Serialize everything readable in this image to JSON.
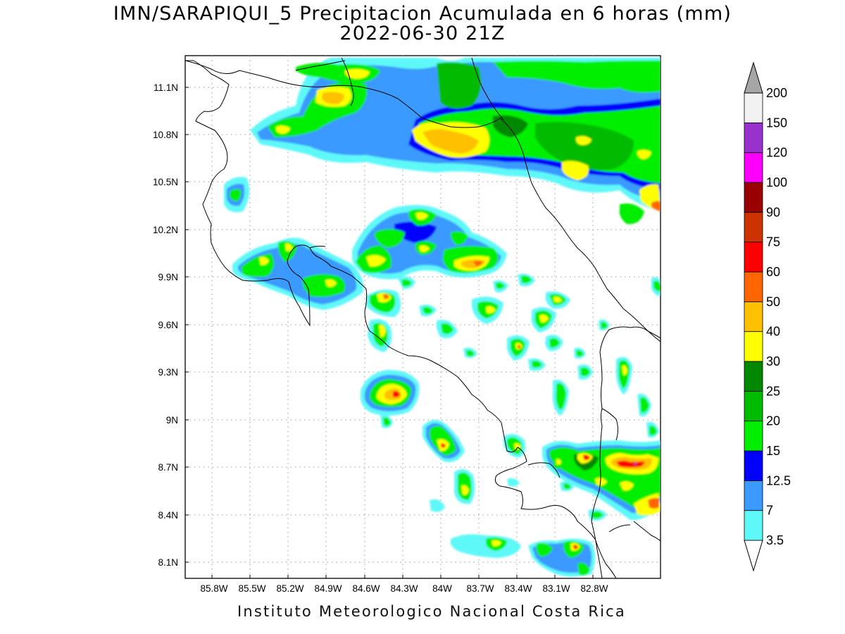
{
  "title": {
    "line1": "IMN/SARAPIQUI_5 Precipitacion Acumulada en 6 horas (mm)",
    "line2": "2022-06-30 21Z"
  },
  "footer": "Instituto Meteorologico Nacional Costa Rica",
  "map": {
    "variable": "Precipitacion acumulada 6 h",
    "units": "mm",
    "lon_range": [
      -86.05,
      -82.43
    ],
    "lat_range": [
      8.0,
      11.3
    ],
    "lat_ticks": [
      "8.1N",
      "8.4N",
      "8.7N",
      "9N",
      "9.3N",
      "9.6N",
      "9.9N",
      "10.2N",
      "10.5N",
      "10.8N",
      "11.1N"
    ],
    "lon_ticks": [
      "85.8W",
      "85.5W",
      "85.2W",
      "84.9W",
      "84.6W",
      "84.3W",
      "84W",
      "83.7W",
      "83.4W",
      "83.1W",
      "82.8W"
    ],
    "grid": "dotted"
  },
  "colorbar": {
    "labels": [
      "3.5",
      "7",
      "12.5",
      "15",
      "20",
      "25",
      "30",
      "40",
      "50",
      "60",
      "75",
      "90",
      "100",
      "120",
      "150",
      "200"
    ],
    "colors": [
      "#ffffff",
      "#5ff8f8",
      "#3a9aff",
      "#0000ff",
      "#00ee00",
      "#00bb00",
      "#008800",
      "#ffff00",
      "#ffc000",
      "#ff6600",
      "#ff0000",
      "#cc3300",
      "#990000",
      "#ff00ff",
      "#9932cc",
      "#f2f2f2",
      "#a6a6a6"
    ]
  }
}
